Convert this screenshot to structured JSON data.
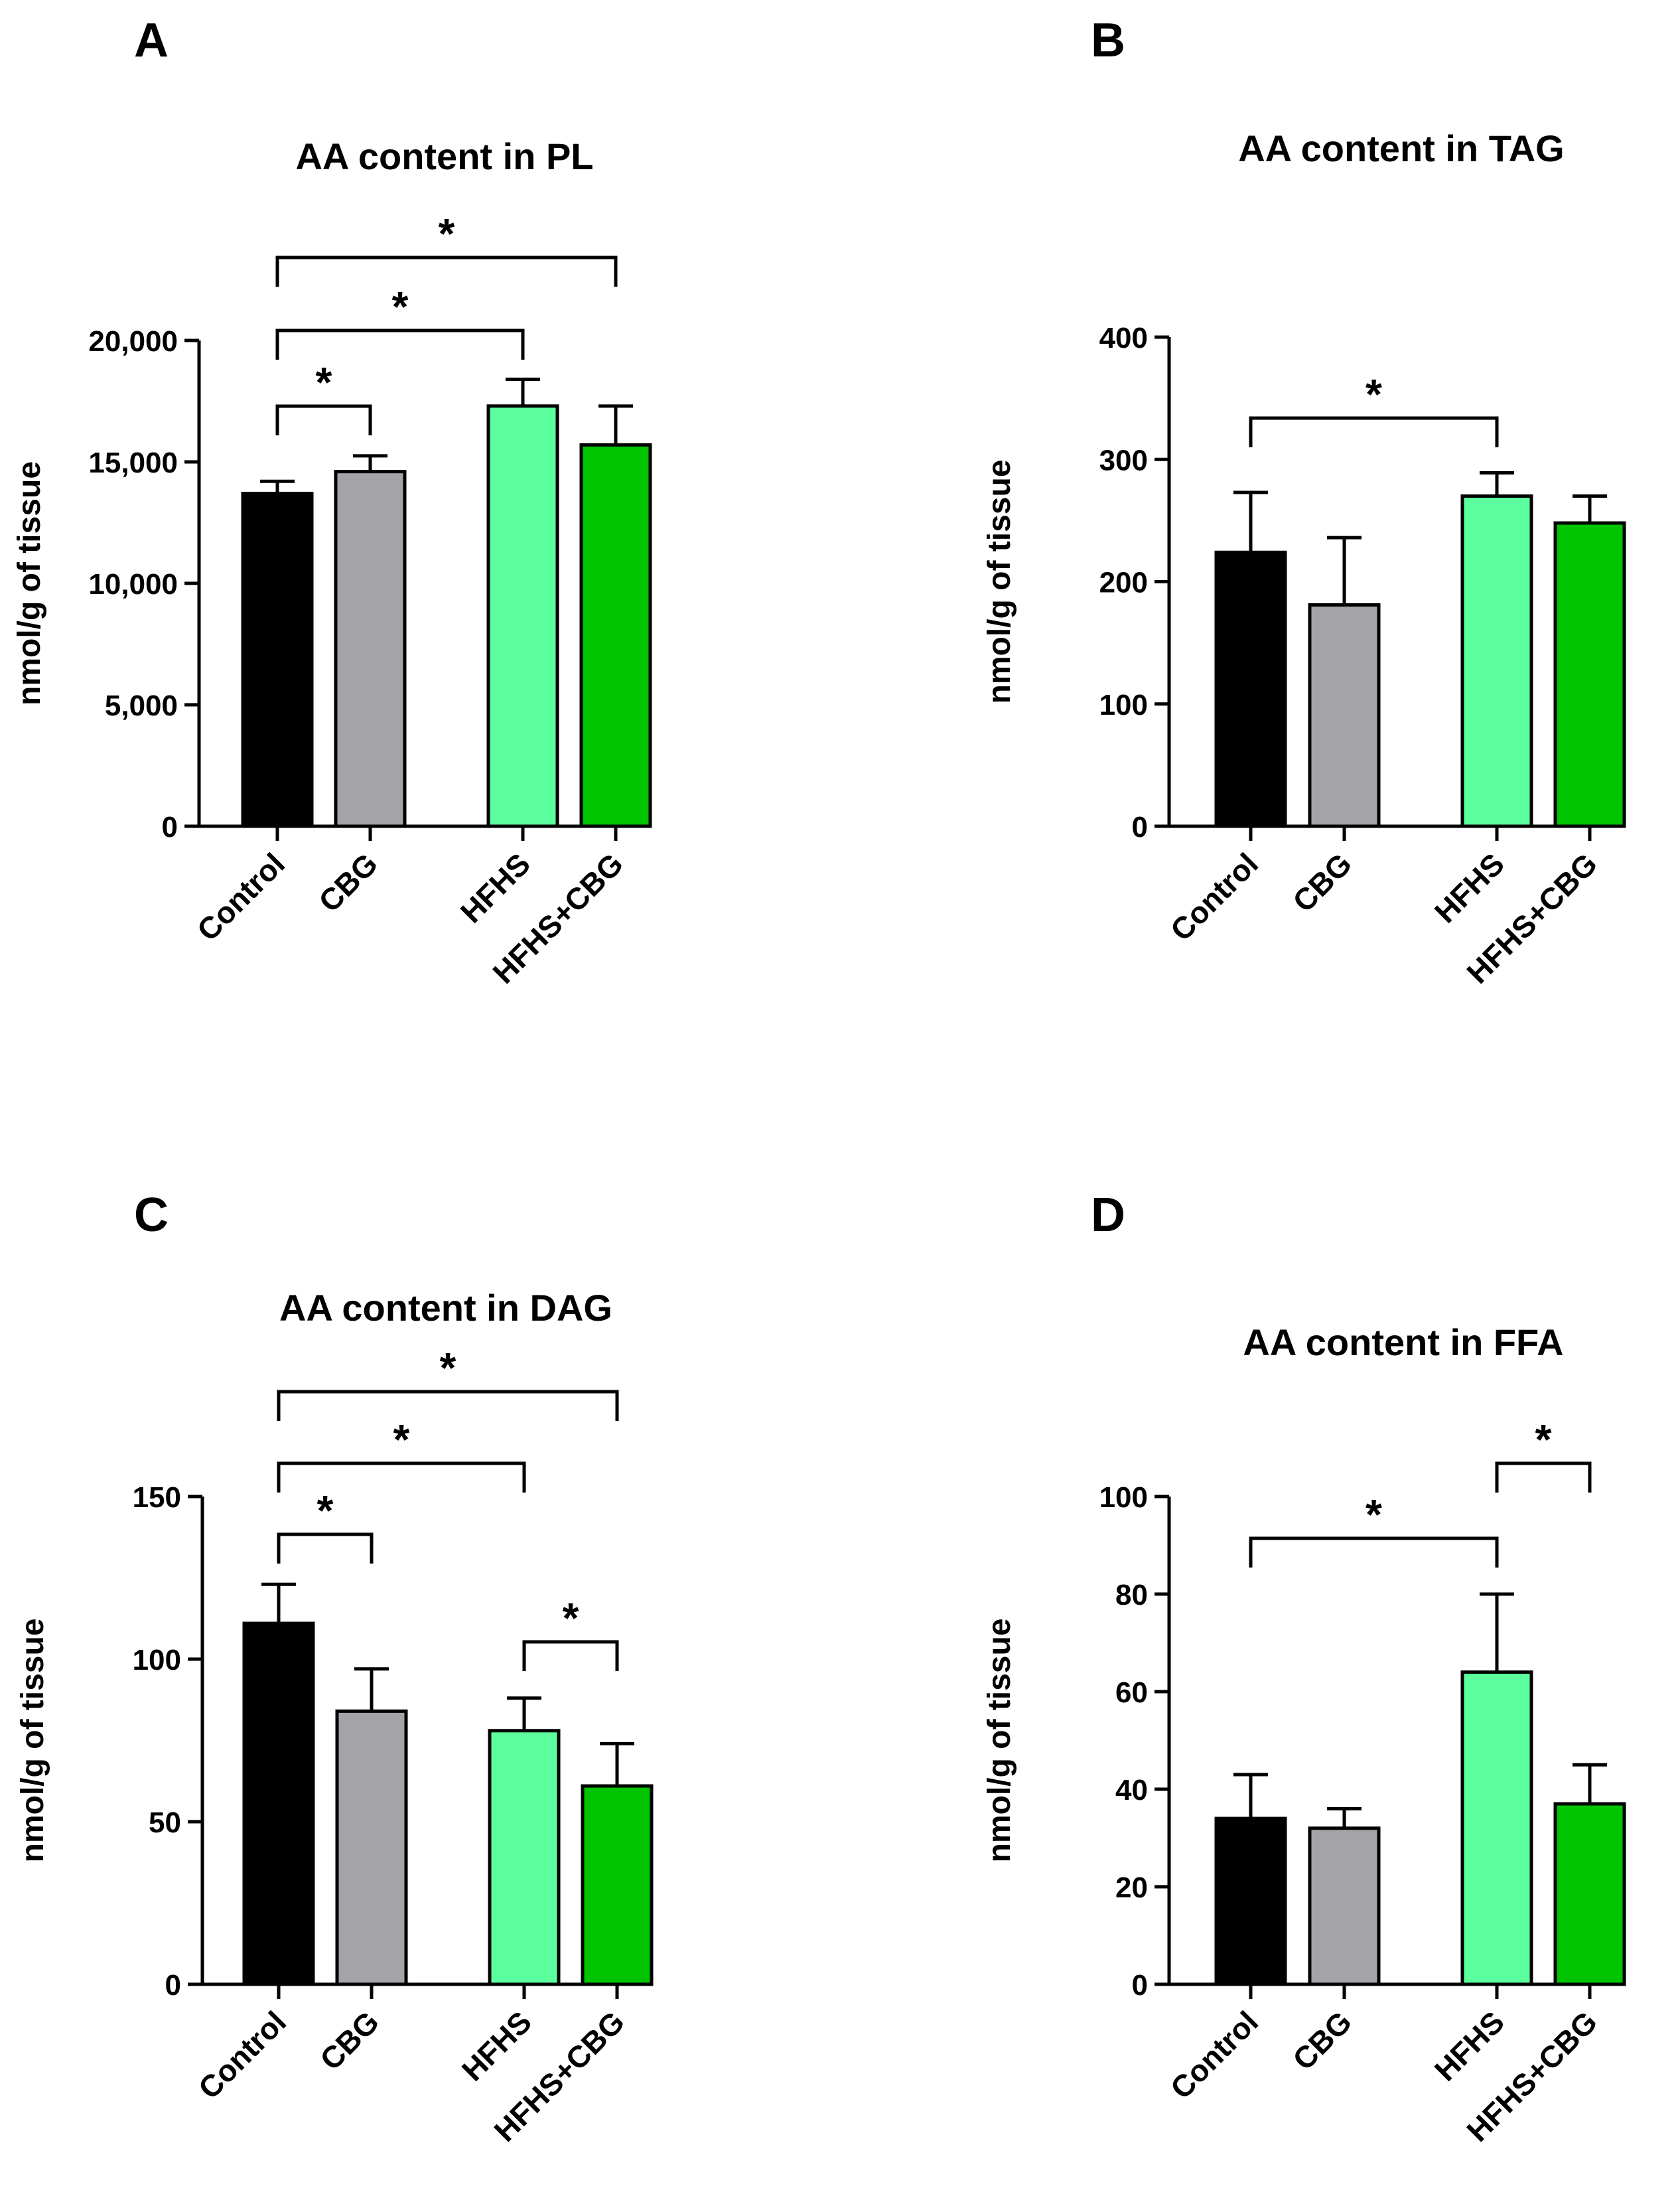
{
  "colors": {
    "Control": "#000000",
    "CBG": "#a3a3a8",
    "HFHS": "#5cff9d",
    "HFHS+CBG": "#00c400",
    "outline": "#000000",
    "background": "#ffffff"
  },
  "chart_data": [
    {
      "panel_label": "A",
      "type": "bar",
      "title": "AA content in PL",
      "ylabel": "nmol/g of tissue",
      "categories": [
        "Control",
        "CBG",
        "HFHS",
        "HFHS+CBG"
      ],
      "values": [
        13700,
        14600,
        17300,
        15700
      ],
      "errors": [
        500,
        650,
        1100,
        1600
      ],
      "ylim": [
        0,
        20000
      ],
      "yticks": [
        0,
        5000,
        10000,
        15000,
        20000
      ],
      "ytick_labels": [
        "0",
        "5,000",
        "10,000",
        "15,000",
        "20,000"
      ],
      "significance": [
        {
          "from": "Control",
          "to": "CBG",
          "label": "*"
        },
        {
          "from": "Control",
          "to": "HFHS",
          "label": "*"
        },
        {
          "from": "Control",
          "to": "HFHS+CBG",
          "label": "*"
        }
      ]
    },
    {
      "panel_label": "B",
      "type": "bar",
      "title": "AA content in TAG",
      "ylabel": "nmol/g of tissue",
      "categories": [
        "Control",
        "CBG",
        "HFHS",
        "HFHS+CBG"
      ],
      "values": [
        224,
        181,
        270,
        248
      ],
      "errors": [
        49,
        55,
        19,
        22
      ],
      "ylim": [
        0,
        400
      ],
      "yticks": [
        0,
        100,
        200,
        300,
        400
      ],
      "ytick_labels": [
        "0",
        "100",
        "200",
        "300",
        "400"
      ],
      "significance": [
        {
          "from": "Control",
          "to": "HFHS",
          "label": "*"
        }
      ]
    },
    {
      "panel_label": "C",
      "type": "bar",
      "title": "AA content in DAG",
      "ylabel": "nmol/g of tissue",
      "categories": [
        "Control",
        "CBG",
        "HFHS",
        "HFHS+CBG"
      ],
      "values": [
        111,
        84,
        78,
        61
      ],
      "errors": [
        12,
        13,
        10,
        13
      ],
      "ylim": [
        0,
        150
      ],
      "yticks": [
        0,
        50,
        100,
        150
      ],
      "ytick_labels": [
        "0",
        "50",
        "100",
        "150"
      ],
      "significance": [
        {
          "from": "Control",
          "to": "CBG",
          "label": "*"
        },
        {
          "from": "Control",
          "to": "HFHS",
          "label": "*"
        },
        {
          "from": "Control",
          "to": "HFHS+CBG",
          "label": "*"
        },
        {
          "from": "HFHS",
          "to": "HFHS+CBG",
          "label": "*"
        }
      ]
    },
    {
      "panel_label": "D",
      "type": "bar",
      "title": "AA content in FFA",
      "ylabel": "nmol/g of tissue",
      "categories": [
        "Control",
        "CBG",
        "HFHS",
        "HFHS+CBG"
      ],
      "values": [
        34,
        32,
        64,
        37
      ],
      "errors": [
        9,
        4,
        16,
        8
      ],
      "ylim": [
        0,
        100
      ],
      "yticks": [
        0,
        20,
        40,
        60,
        80,
        100
      ],
      "ytick_labels": [
        "0",
        "20",
        "40",
        "60",
        "80",
        "100"
      ],
      "significance": [
        {
          "from": "Control",
          "to": "HFHS",
          "label": "*"
        },
        {
          "from": "HFHS",
          "to": "HFHS+CBG",
          "label": "*"
        }
      ]
    }
  ]
}
